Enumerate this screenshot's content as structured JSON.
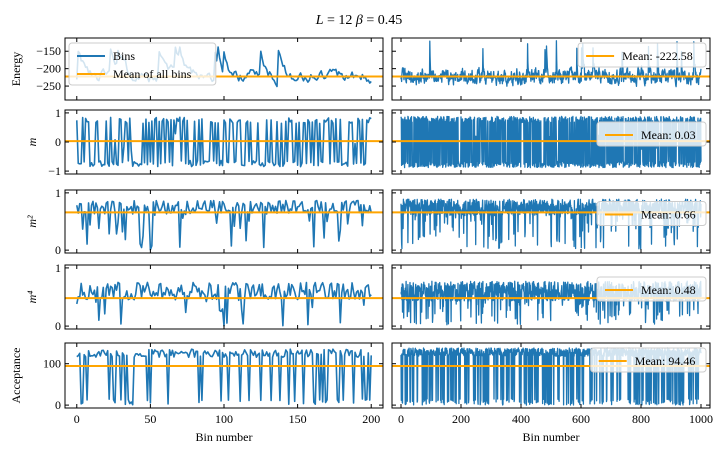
{
  "figure": {
    "title_L": "L = 12",
    "title_beta": "β = 0.45",
    "title": "L = 12   β = 0.45"
  },
  "colors": {
    "series": "#1f77b4",
    "mean": "#ffa500",
    "axes": "#000000"
  },
  "chart_data": [
    {
      "type": "line",
      "row": 0,
      "col": "left",
      "ylabel": "Energy",
      "xlim": [
        -8,
        208
      ],
      "ylim": [
        -290,
        -112
      ],
      "yticks": [
        -150,
        -200,
        -250
      ],
      "ytick_labels": [
        "−150",
        "−200",
        "−250"
      ],
      "xticks": [
        0,
        50,
        100,
        150,
        200
      ],
      "xtick_labels": [],
      "mean": -222.58,
      "legend": {
        "location": "upper left",
        "entries": [
          "Bins",
          "Mean of all bins"
        ]
      },
      "series": {
        "name": "Bins",
        "n": 201,
        "x_range": [
          0,
          200
        ],
        "center": -222.58,
        "amp": 30,
        "lo": -280,
        "hi": -135,
        "seed": 11,
        "style": "smooth"
      }
    },
    {
      "type": "line",
      "row": 0,
      "col": "right",
      "xlim": [
        -30,
        1030
      ],
      "ylim": [
        -290,
        -112
      ],
      "yticks": [
        -150,
        -200,
        -250
      ],
      "ytick_labels": [],
      "xticks": [
        0,
        200,
        400,
        600,
        800,
        1000
      ],
      "xtick_labels": [],
      "mean": -222.58,
      "legend": {
        "location": "upper right",
        "entries": [
          "Mean: -222.58"
        ]
      },
      "series": {
        "name": "Bins",
        "n": 1001,
        "x_range": [
          0,
          1000
        ],
        "center": -222.58,
        "amp": 28,
        "lo": -285,
        "hi": -120,
        "seed": 12,
        "style": "noisy"
      }
    },
    {
      "type": "line",
      "row": 1,
      "col": "left",
      "ylabel": "m",
      "xlim": [
        -8,
        208
      ],
      "ylim": [
        -1.1,
        1.1
      ],
      "yticks": [
        1,
        0,
        -1
      ],
      "ytick_labels": [
        "1",
        "0",
        "−1"
      ],
      "xticks": [
        0,
        50,
        100,
        150,
        200
      ],
      "xtick_labels": [],
      "mean": 0.03,
      "series": {
        "name": "Bins",
        "n": 201,
        "x_range": [
          0,
          200
        ],
        "center": 0,
        "amp": 0.85,
        "lo": -0.95,
        "hi": 0.95,
        "seed": 21,
        "style": "flip"
      }
    },
    {
      "type": "line",
      "row": 1,
      "col": "right",
      "xlim": [
        -30,
        1030
      ],
      "ylim": [
        -1.1,
        1.1
      ],
      "yticks": [
        1,
        0,
        -1
      ],
      "ytick_labels": [],
      "xticks": [
        0,
        200,
        400,
        600,
        800,
        1000
      ],
      "xtick_labels": [],
      "mean": 0.03,
      "legend": {
        "location": "right",
        "entries": [
          "Mean: 0.03"
        ]
      },
      "series": {
        "name": "Bins",
        "n": 1001,
        "x_range": [
          0,
          1000
        ],
        "center": 0,
        "amp": 0.88,
        "lo": -0.97,
        "hi": 0.97,
        "seed": 22,
        "style": "flip"
      }
    },
    {
      "type": "line",
      "row": 2,
      "col": "left",
      "ylabel": "m²",
      "xlim": [
        -8,
        208
      ],
      "ylim": [
        -0.05,
        1.05
      ],
      "yticks": [
        1,
        0
      ],
      "ytick_labels": [
        "1",
        "0"
      ],
      "xticks": [
        0,
        50,
        100,
        150,
        200
      ],
      "xtick_labels": [],
      "mean": 0.66,
      "series": {
        "name": "Bins",
        "n": 201,
        "x_range": [
          0,
          200
        ],
        "center": 0.75,
        "amp": 0.12,
        "lo": 0.0,
        "hi": 0.95,
        "seed": 31,
        "style": "dips"
      }
    },
    {
      "type": "line",
      "row": 2,
      "col": "right",
      "xlim": [
        -30,
        1030
      ],
      "ylim": [
        -0.05,
        1.05
      ],
      "yticks": [
        1,
        0
      ],
      "ytick_labels": [],
      "xticks": [
        0,
        200,
        400,
        600,
        800,
        1000
      ],
      "xtick_labels": [],
      "mean": 0.66,
      "legend": {
        "location": "right",
        "entries": [
          "Mean: 0.66"
        ]
      },
      "series": {
        "name": "Bins",
        "n": 1001,
        "x_range": [
          0,
          1000
        ],
        "center": 0.75,
        "amp": 0.14,
        "lo": 0.02,
        "hi": 0.97,
        "seed": 32,
        "style": "dips"
      }
    },
    {
      "type": "line",
      "row": 3,
      "col": "left",
      "ylabel": "m⁴",
      "xlim": [
        -8,
        208
      ],
      "ylim": [
        -0.05,
        1.05
      ],
      "yticks": [
        1,
        0
      ],
      "ytick_labels": [
        "1",
        "0"
      ],
      "xticks": [
        0,
        50,
        100,
        150,
        200
      ],
      "xtick_labels": [],
      "mean": 0.48,
      "series": {
        "name": "Bins",
        "n": 201,
        "x_range": [
          0,
          200
        ],
        "center": 0.6,
        "amp": 0.15,
        "lo": 0.0,
        "hi": 0.95,
        "seed": 41,
        "style": "dips"
      }
    },
    {
      "type": "line",
      "row": 3,
      "col": "right",
      "xlim": [
        -30,
        1030
      ],
      "ylim": [
        -0.05,
        1.05
      ],
      "yticks": [
        1,
        0
      ],
      "ytick_labels": [],
      "xticks": [
        0,
        200,
        400,
        600,
        800,
        1000
      ],
      "xtick_labels": [],
      "mean": 0.48,
      "legend": {
        "location": "right",
        "entries": [
          "Mean: 0.48"
        ]
      },
      "series": {
        "name": "Bins",
        "n": 1001,
        "x_range": [
          0,
          1000
        ],
        "center": 0.6,
        "amp": 0.17,
        "lo": 0.02,
        "hi": 0.97,
        "seed": 42,
        "style": "dips"
      }
    },
    {
      "type": "line",
      "row": 4,
      "col": "left",
      "ylabel": "Acceptance",
      "xlabel": "Bin number",
      "xlim": [
        -8,
        208
      ],
      "ylim": [
        -7,
        150
      ],
      "yticks": [
        100,
        0
      ],
      "ytick_labels": [
        "100",
        "0"
      ],
      "xticks": [
        0,
        50,
        100,
        150,
        200
      ],
      "xtick_labels": [
        "0",
        "50",
        "100",
        "150",
        "200"
      ],
      "mean": 94.46,
      "series": {
        "name": "Bins",
        "n": 201,
        "x_range": [
          0,
          200
        ],
        "center": 125,
        "amp": 10,
        "lo": 0,
        "hi": 142,
        "seed": 51,
        "style": "drops"
      }
    },
    {
      "type": "line",
      "row": 4,
      "col": "right",
      "xlabel": "Bin number",
      "xlim": [
        -30,
        1030
      ],
      "ylim": [
        -7,
        150
      ],
      "yticks": [
        100,
        0
      ],
      "ytick_labels": [],
      "xticks": [
        0,
        200,
        400,
        600,
        800,
        1000
      ],
      "xtick_labels": [
        "0",
        "200",
        "400",
        "600",
        "800",
        "1000"
      ],
      "mean": 94.46,
      "legend": {
        "location": "upper right",
        "entries": [
          "Mean: 94.46"
        ]
      },
      "series": {
        "name": "Bins",
        "n": 1001,
        "x_range": [
          0,
          1000
        ],
        "center": 128,
        "amp": 10,
        "lo": 0,
        "hi": 145,
        "seed": 52,
        "style": "drops"
      }
    }
  ]
}
